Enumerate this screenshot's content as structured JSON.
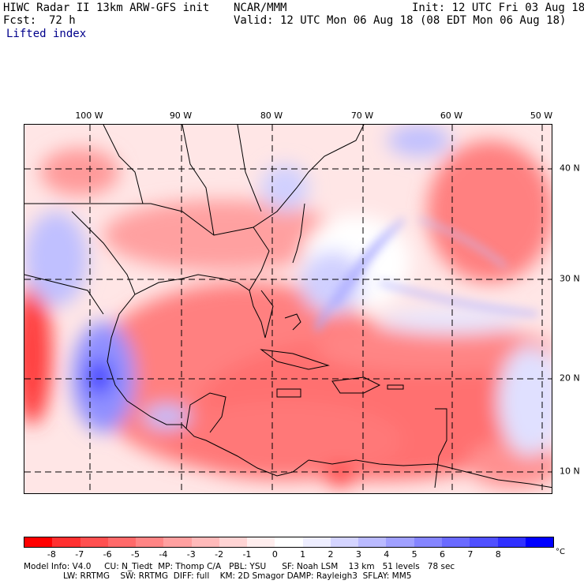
{
  "header": {
    "title_left": "HIWC Radar II 13km ARW-GFS init",
    "title_center": "NCAR/MMM",
    "init": "Init: 12 UTC Fri 03 Aug 18",
    "forecast_label": "Fcst:",
    "forecast_hours": "72 h",
    "valid": "Valid: 12 UTC Mon 06 Aug 18 (08 EDT Mon 06 Aug 18)",
    "field": "Lifted index"
  },
  "map": {
    "lon_labels": [
      "100 W",
      "90 W",
      "80 W",
      "70 W",
      "60 W",
      "50 W"
    ],
    "lat_labels": [
      "40 N",
      "30 N",
      "20 N",
      "10 N"
    ]
  },
  "colorbar": {
    "ticks": [
      "-8",
      "-7",
      "-6",
      "-5",
      "-4",
      "-3",
      "-2",
      "-1",
      "0",
      "1",
      "2",
      "3",
      "4",
      "5",
      "6",
      "7",
      "8"
    ],
    "unit": "°C",
    "colors": [
      "#ff0000",
      "#ff3030",
      "#ff5050",
      "#ff6a6a",
      "#ff8585",
      "#ffa0a0",
      "#ffbaba",
      "#ffd4d4",
      "#ffeeee",
      "#ffffff",
      "#eeeeff",
      "#d4d4ff",
      "#babaff",
      "#a0a0ff",
      "#8585ff",
      "#6a6aff",
      "#5050ff",
      "#3030ff",
      "#0000ff"
    ]
  },
  "footer": {
    "line1": "Model Info: V4.0     CU: N_Tiedt  MP: Thomp C/A   PBL: YSU      SF: Noah LSM    13 km   51 levels   78 sec",
    "line2": "LW: RRTMG    SW: RRTMG  DIFF: full    KM: 2D Smagor DAMP: Rayleigh3  SFLAY: MM5"
  }
}
